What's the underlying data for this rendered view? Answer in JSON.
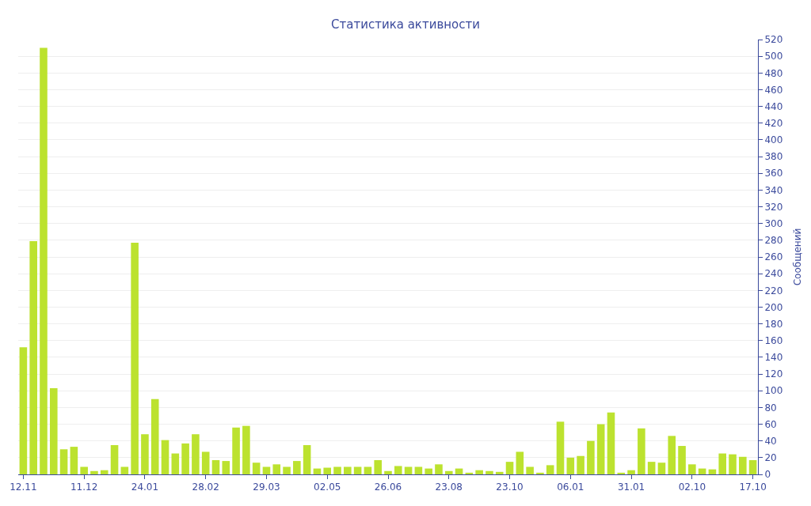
{
  "chart_data": {
    "type": "bar",
    "title": "Статистика активности",
    "ylabel": "Сообщений",
    "categories": [
      "12.11",
      null,
      null,
      null,
      null,
      null,
      "11.12",
      null,
      null,
      null,
      null,
      null,
      "24.01",
      null,
      null,
      null,
      null,
      null,
      "28.02",
      null,
      null,
      null,
      null,
      null,
      "29.03",
      null,
      null,
      null,
      null,
      null,
      "02.05",
      null,
      null,
      null,
      null,
      null,
      "26.06",
      null,
      null,
      null,
      null,
      null,
      "23.08",
      null,
      null,
      null,
      null,
      null,
      "23.10",
      null,
      null,
      null,
      null,
      null,
      "06.01",
      null,
      null,
      null,
      null,
      null,
      "31.01",
      null,
      null,
      null,
      null,
      null,
      "02.10",
      null,
      null,
      null,
      null,
      null,
      "17.10"
    ],
    "values": [
      152,
      279,
      510,
      103,
      30,
      33,
      9,
      4,
      5,
      35,
      9,
      277,
      48,
      90,
      41,
      25,
      37,
      48,
      27,
      17,
      16,
      56,
      58,
      14,
      9,
      12,
      9,
      16,
      35,
      7,
      8,
      9,
      9,
      9,
      9,
      17,
      4,
      10,
      9,
      9,
      7,
      12,
      4,
      7,
      2,
      5,
      4,
      3,
      15,
      27,
      9,
      2,
      11,
      63,
      20,
      22,
      40,
      60,
      74,
      2,
      5,
      55,
      15,
      14,
      46,
      34,
      12,
      7,
      6,
      25,
      24,
      21,
      17
    ],
    "color": "#bce22f",
    "ylim": [
      0,
      520
    ],
    "yticks": [
      0,
      20,
      40,
      60,
      80,
      100,
      120,
      140,
      160,
      180,
      200,
      220,
      240,
      260,
      280,
      300,
      320,
      340,
      360,
      380,
      400,
      420,
      440,
      460,
      480,
      500,
      520
    ],
    "grid": "y"
  }
}
